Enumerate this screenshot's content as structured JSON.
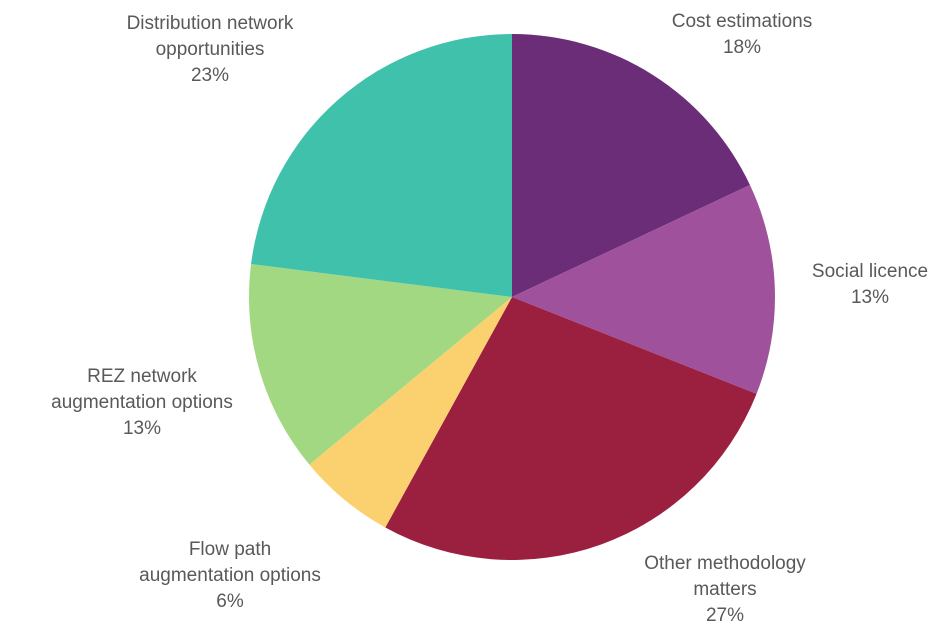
{
  "chart_data": {
    "type": "pie",
    "title": "",
    "legend": "none",
    "slices": [
      {
        "label": [
          "Cost estimations"
        ],
        "value": 18,
        "value_label": "18%",
        "color": "#6b2d78"
      },
      {
        "label": [
          "Social licence"
        ],
        "value": 13,
        "value_label": "13%",
        "color": "#a0519b"
      },
      {
        "label": [
          "Other methodology",
          "matters"
        ],
        "value": 27,
        "value_label": "27%",
        "color": "#9b1f3f"
      },
      {
        "label": [
          "Flow path",
          "augmentation options"
        ],
        "value": 6,
        "value_label": "6%",
        "color": "#fbd16f"
      },
      {
        "label": [
          "REZ network",
          "augmentation options"
        ],
        "value": 13,
        "value_label": "13%",
        "color": "#a3d883"
      },
      {
        "label": [
          "Distribution network",
          "opportunities"
        ],
        "value": 23,
        "value_label": "23%",
        "color": "#40c1ab"
      }
    ]
  }
}
